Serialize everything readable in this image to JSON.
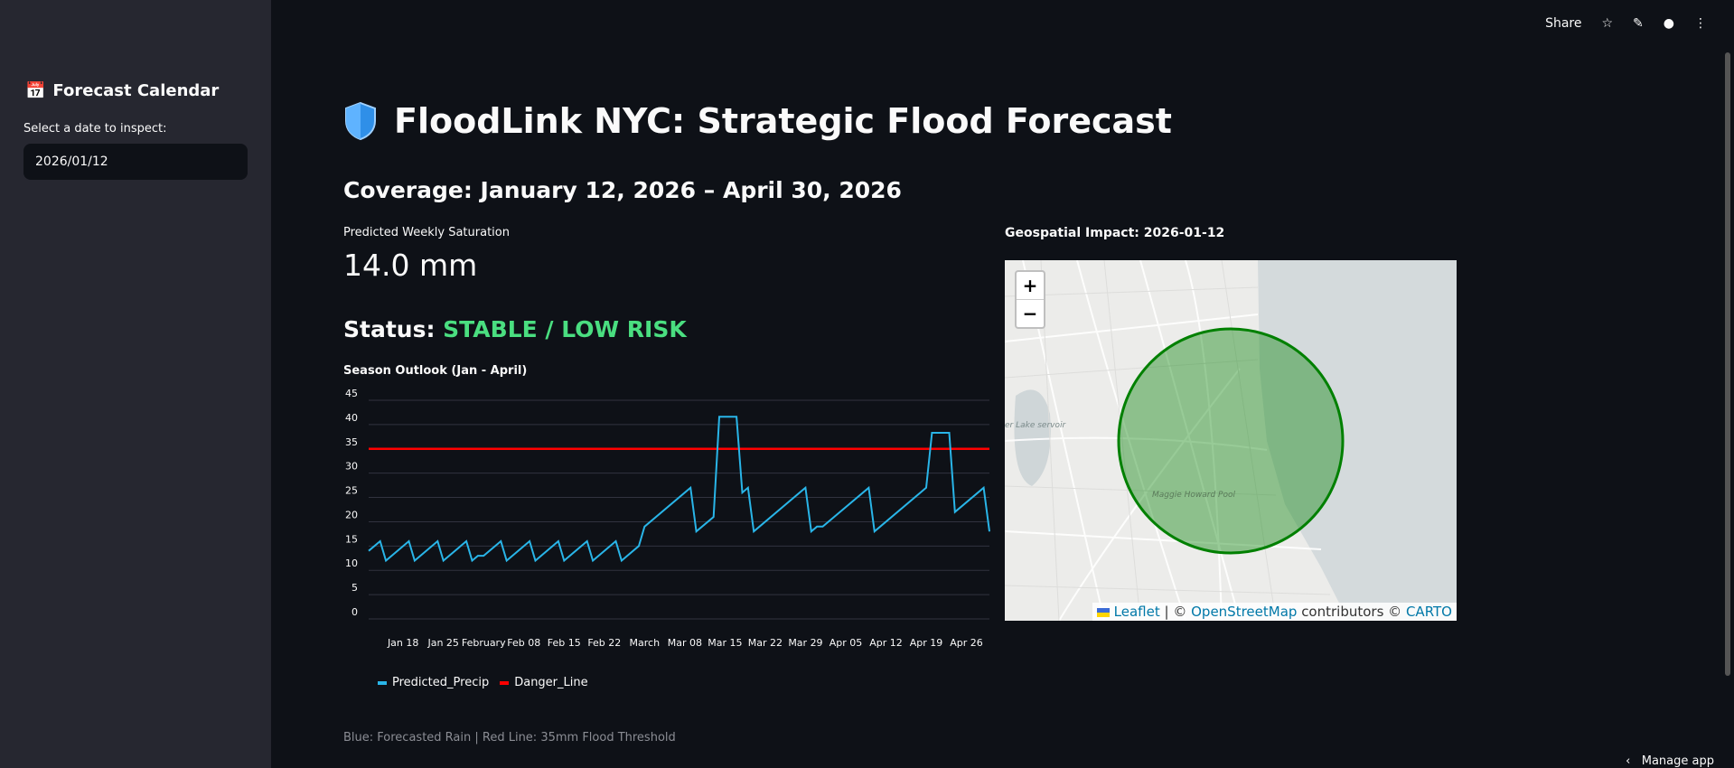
{
  "sidebar": {
    "title": "Forecast Calendar",
    "title_icon": "calendar-icon",
    "date_label": "Select a date to inspect:",
    "date_value": "2026/01/12"
  },
  "toolbar": {
    "share": "Share",
    "icons": [
      "star-icon",
      "pencil-icon",
      "github-icon",
      "more-vert-icon"
    ]
  },
  "main": {
    "title": "FloodLink NYC: Strategic Flood Forecast",
    "title_icon": "shield-icon",
    "coverage": "Coverage: January 12, 2026 – April 30, 2026",
    "metric_label": "Predicted Weekly Saturation",
    "metric_value": "14.0 mm",
    "status_prefix": "Status:",
    "status_value": "STABLE / LOW RISK",
    "status_color": "#4ade80",
    "chart_title": "Season Outlook (Jan - April)",
    "caption": "Blue: Forecasted Rain | Red Line: 35mm Flood Threshold"
  },
  "map": {
    "title": "Geospatial Impact: 2026-01-12",
    "zoom_in": "+",
    "zoom_out": "−",
    "attribution": {
      "leaflet": "Leaflet",
      "sep": " | © ",
      "osm": "OpenStreetMap",
      "contrib": " contributors © ",
      "carto": "CARTO"
    },
    "labels": [
      "Maggie Howard Pool",
      "er Lake servoir"
    ],
    "circle_color": "#008000"
  },
  "footer": {
    "manage": "Manage app"
  },
  "chart_data": {
    "type": "line",
    "xlabel": "",
    "ylabel": "",
    "ylim": [
      0,
      45
    ],
    "yticks": [
      0,
      5,
      10,
      15,
      20,
      25,
      30,
      35,
      40,
      45
    ],
    "xticks": [
      "Jan 18",
      "Jan 25",
      "February",
      "Feb 08",
      "Feb 15",
      "Feb 22",
      "March",
      "Mar 08",
      "Mar 15",
      "Mar 22",
      "Mar 29",
      "Apr 05",
      "Apr 12",
      "Apr 19",
      "Apr 26"
    ],
    "xtick_dates": [
      "2026-01-18",
      "2026-01-25",
      "2026-02-01",
      "2026-02-08",
      "2026-02-15",
      "2026-02-22",
      "2026-03-01",
      "2026-03-08",
      "2026-03-15",
      "2026-03-22",
      "2026-03-29",
      "2026-04-05",
      "2026-04-12",
      "2026-04-19",
      "2026-04-26"
    ],
    "xlim": [
      "2026-01-12",
      "2026-04-30"
    ],
    "grid": true,
    "legend": "bottom-left",
    "series": [
      {
        "name": "Predicted_Precip",
        "color": "#29b5e8",
        "points": [
          [
            "2026-01-12",
            14
          ],
          [
            "2026-01-14",
            16
          ],
          [
            "2026-01-15",
            12
          ],
          [
            "2026-01-19",
            16
          ],
          [
            "2026-01-20",
            12
          ],
          [
            "2026-01-24",
            16
          ],
          [
            "2026-01-25",
            12
          ],
          [
            "2026-01-29",
            16
          ],
          [
            "2026-01-30",
            12
          ],
          [
            "2026-01-31",
            13
          ],
          [
            "2026-02-01",
            13
          ],
          [
            "2026-02-04",
            16
          ],
          [
            "2026-02-05",
            12
          ],
          [
            "2026-02-09",
            16
          ],
          [
            "2026-02-10",
            12
          ],
          [
            "2026-02-14",
            16
          ],
          [
            "2026-02-15",
            12
          ],
          [
            "2026-02-19",
            16
          ],
          [
            "2026-02-20",
            12
          ],
          [
            "2026-02-24",
            16
          ],
          [
            "2026-02-25",
            12
          ],
          [
            "2026-02-28",
            15
          ],
          [
            "2026-03-01",
            19
          ],
          [
            "2026-03-09",
            27
          ],
          [
            "2026-03-10",
            18
          ],
          [
            "2026-03-13",
            21
          ],
          [
            "2026-03-14",
            41.6
          ],
          [
            "2026-03-17",
            41.6
          ],
          [
            "2026-03-18",
            26
          ],
          [
            "2026-03-19",
            27
          ],
          [
            "2026-03-20",
            18
          ],
          [
            "2026-03-29",
            27
          ],
          [
            "2026-03-30",
            18
          ],
          [
            "2026-03-31",
            19
          ],
          [
            "2026-04-01",
            19
          ],
          [
            "2026-04-09",
            27
          ],
          [
            "2026-04-10",
            18
          ],
          [
            "2026-04-19",
            27
          ],
          [
            "2026-04-20",
            38.3
          ],
          [
            "2026-04-23",
            38.3
          ],
          [
            "2026-04-24",
            22
          ],
          [
            "2026-04-29",
            27
          ],
          [
            "2026-04-30",
            18
          ]
        ]
      },
      {
        "name": "Danger_Line",
        "color": "#ff0000",
        "points": [
          [
            "2026-01-12",
            35
          ],
          [
            "2026-04-30",
            35
          ]
        ]
      }
    ]
  }
}
